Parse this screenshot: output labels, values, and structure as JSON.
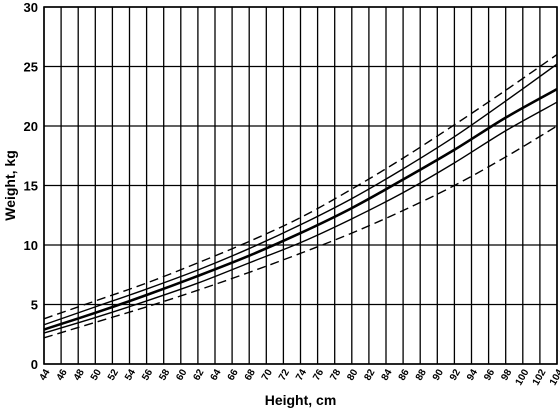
{
  "chart_data": {
    "type": "line",
    "title": "",
    "xlabel": "Height, cm",
    "ylabel": "Weight, kg",
    "xlim": [
      44,
      104
    ],
    "ylim": [
      0,
      30
    ],
    "x_ticks": [
      44,
      46,
      48,
      50,
      52,
      54,
      56,
      58,
      60,
      62,
      64,
      66,
      68,
      70,
      72,
      74,
      76,
      78,
      80,
      82,
      84,
      86,
      88,
      90,
      92,
      94,
      96,
      98,
      100,
      102,
      104
    ],
    "y_ticks": [
      0,
      5,
      10,
      15,
      20,
      25,
      30
    ],
    "grid": true,
    "legend": "none",
    "x": [
      44,
      50,
      56,
      62,
      68,
      74,
      80,
      86,
      92,
      98,
      104
    ],
    "series": [
      {
        "style": "dashed",
        "values": [
          3.8,
          5.3,
          6.8,
          8.5,
          10.3,
          12.3,
          14.7,
          17.3,
          20.1,
          23.0,
          26.0
        ]
      },
      {
        "style": "solid-thin",
        "values": [
          3.3,
          4.8,
          6.3,
          7.9,
          9.7,
          11.7,
          13.9,
          16.4,
          19.1,
          22.1,
          25.2
        ]
      },
      {
        "style": "solid-bold",
        "values": [
          2.9,
          4.3,
          5.8,
          7.4,
          9.1,
          11.0,
          13.1,
          15.5,
          18.0,
          20.7,
          23.1
        ]
      },
      {
        "style": "solid-thin",
        "values": [
          2.6,
          3.9,
          5.3,
          6.8,
          8.5,
          10.2,
          12.2,
          14.4,
          16.9,
          19.6,
          22.0
        ]
      },
      {
        "style": "dashed",
        "values": [
          2.2,
          3.5,
          4.8,
          6.2,
          7.7,
          9.3,
          11.0,
          12.9,
          15.0,
          17.4,
          20.0
        ]
      }
    ]
  }
}
